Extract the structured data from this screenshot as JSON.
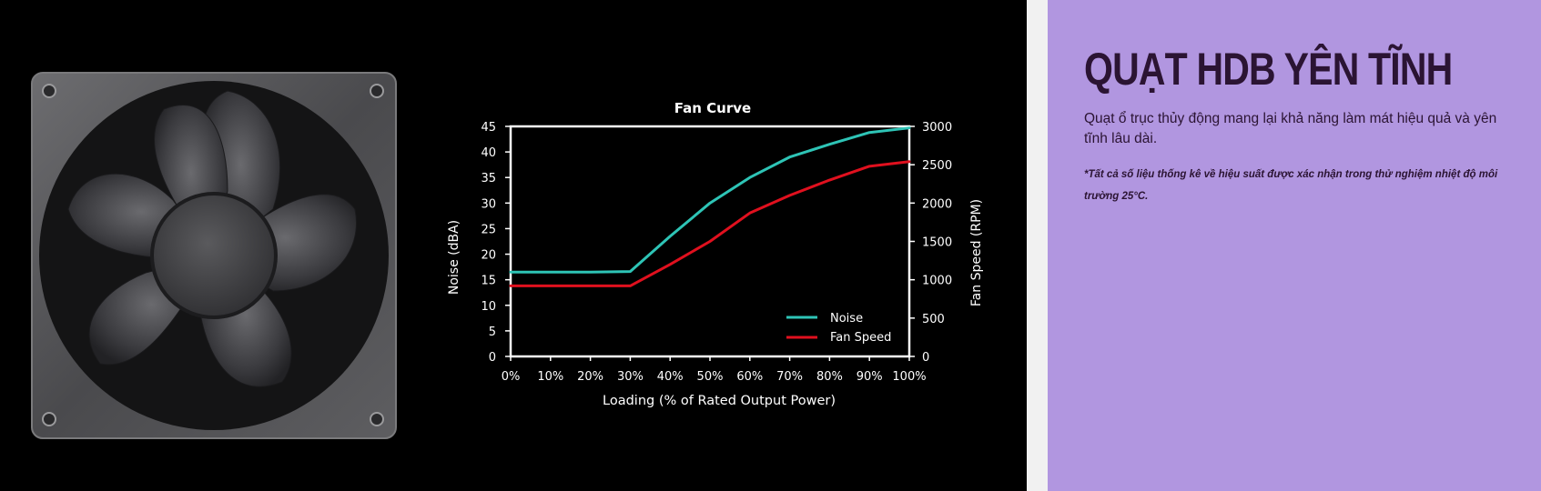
{
  "product_panel": {
    "title": "QUẠT HDB YÊN TĨNH",
    "description": "Quạt ổ trục thủy động mang lại khả năng làm mát hiệu quả và yên tĩnh lâu dài.",
    "note": "*Tất cả số liệu thống kê về hiệu suất được xác nhận trong thử nghiệm nhiệt độ môi trường 25°C."
  },
  "colors": {
    "left_bg": "#000000",
    "right_panel_bg": "#b196e0",
    "title_text": "#2b1433",
    "noise_line": "#2ec4b6",
    "fan_speed_line": "#e0101e"
  },
  "icons": {
    "fan_image": "computer-case-fan"
  },
  "chart_data": {
    "type": "line",
    "title": "Fan Curve",
    "xlabel": "Loading (% of Rated Output Power)",
    "ylabel": "Noise (dBA)",
    "ylabel_right": "Fan Speed (RPM)",
    "categories": [
      "0%",
      "10%",
      "20%",
      "30%",
      "40%",
      "50%",
      "60%",
      "70%",
      "80%",
      "90%",
      "100%"
    ],
    "x": [
      0,
      10,
      20,
      30,
      40,
      50,
      60,
      70,
      80,
      90,
      100
    ],
    "ylim": [
      0,
      45
    ],
    "ylim_right": [
      0,
      3000
    ],
    "yticks": [
      0,
      5,
      10,
      15,
      20,
      25,
      30,
      35,
      40,
      45
    ],
    "yticks_right": [
      0,
      500,
      1000,
      1500,
      2000,
      2500,
      3000
    ],
    "grid": false,
    "legend_position": "bottom-right",
    "series": [
      {
        "name": "Noise",
        "axis": "left",
        "color": "#2ec4b6",
        "values": [
          16.5,
          16.5,
          16.5,
          16.6,
          23.5,
          30,
          35,
          39,
          41.5,
          43.8,
          44.7
        ]
      },
      {
        "name": "Fan Speed",
        "axis": "right",
        "color": "#e0101e",
        "values": [
          920,
          920,
          920,
          920,
          1200,
          1500,
          1870,
          2100,
          2300,
          2480,
          2540
        ]
      }
    ]
  }
}
